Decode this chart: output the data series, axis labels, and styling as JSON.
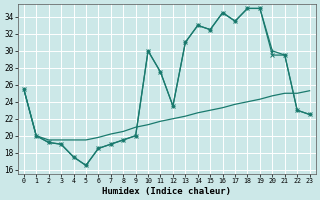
{
  "xlabel": "Humidex (Indice chaleur)",
  "bg_color": "#cce8e8",
  "grid_color": "#ffffff",
  "line_color": "#1a7a6e",
  "xlim": [
    -0.5,
    23.5
  ],
  "ylim": [
    15.5,
    35.5
  ],
  "xticks": [
    0,
    1,
    2,
    3,
    4,
    5,
    6,
    7,
    8,
    9,
    10,
    11,
    12,
    13,
    14,
    15,
    16,
    17,
    18,
    19,
    20,
    21,
    22,
    23
  ],
  "yticks": [
    16,
    18,
    20,
    22,
    24,
    26,
    28,
    30,
    32,
    34
  ],
  "series1_x": [
    0,
    1,
    2,
    3,
    4,
    5,
    6,
    7,
    8,
    9,
    10,
    11,
    12,
    13,
    14,
    15,
    16,
    17,
    18,
    19,
    20,
    21,
    22,
    23
  ],
  "series1_y": [
    25.5,
    20,
    19.2,
    19,
    17.5,
    16.5,
    18.5,
    19,
    19.5,
    20,
    30,
    27.5,
    23.5,
    31,
    33,
    32.5,
    34.5,
    33.5,
    35,
    35,
    30,
    29.5,
    23,
    22.5
  ],
  "series2_x": [
    0,
    1,
    2,
    3,
    4,
    5,
    6,
    7,
    8,
    9,
    10,
    11,
    12,
    13,
    14,
    15,
    16,
    17,
    18,
    19,
    20,
    21,
    22,
    23
  ],
  "series2_y": [
    25.5,
    20,
    19.2,
    19,
    17.5,
    16.5,
    18.5,
    19,
    19.5,
    20,
    30,
    27.5,
    23.5,
    31,
    33,
    32.5,
    34.5,
    33.5,
    35,
    35,
    29.5,
    29.5,
    23,
    22.5
  ],
  "series3_x": [
    0,
    1,
    2,
    3,
    4,
    5,
    6,
    7,
    8,
    9,
    10,
    11,
    12,
    13,
    14,
    15,
    16,
    17,
    18,
    19,
    20,
    21,
    22,
    23
  ],
  "series3_y": [
    25.5,
    20,
    19.5,
    19.5,
    19.5,
    19.5,
    19.8,
    20.2,
    20.5,
    21,
    21.3,
    21.7,
    22,
    22.3,
    22.7,
    23,
    23.3,
    23.7,
    24,
    24.3,
    24.7,
    25,
    25,
    25.3
  ]
}
